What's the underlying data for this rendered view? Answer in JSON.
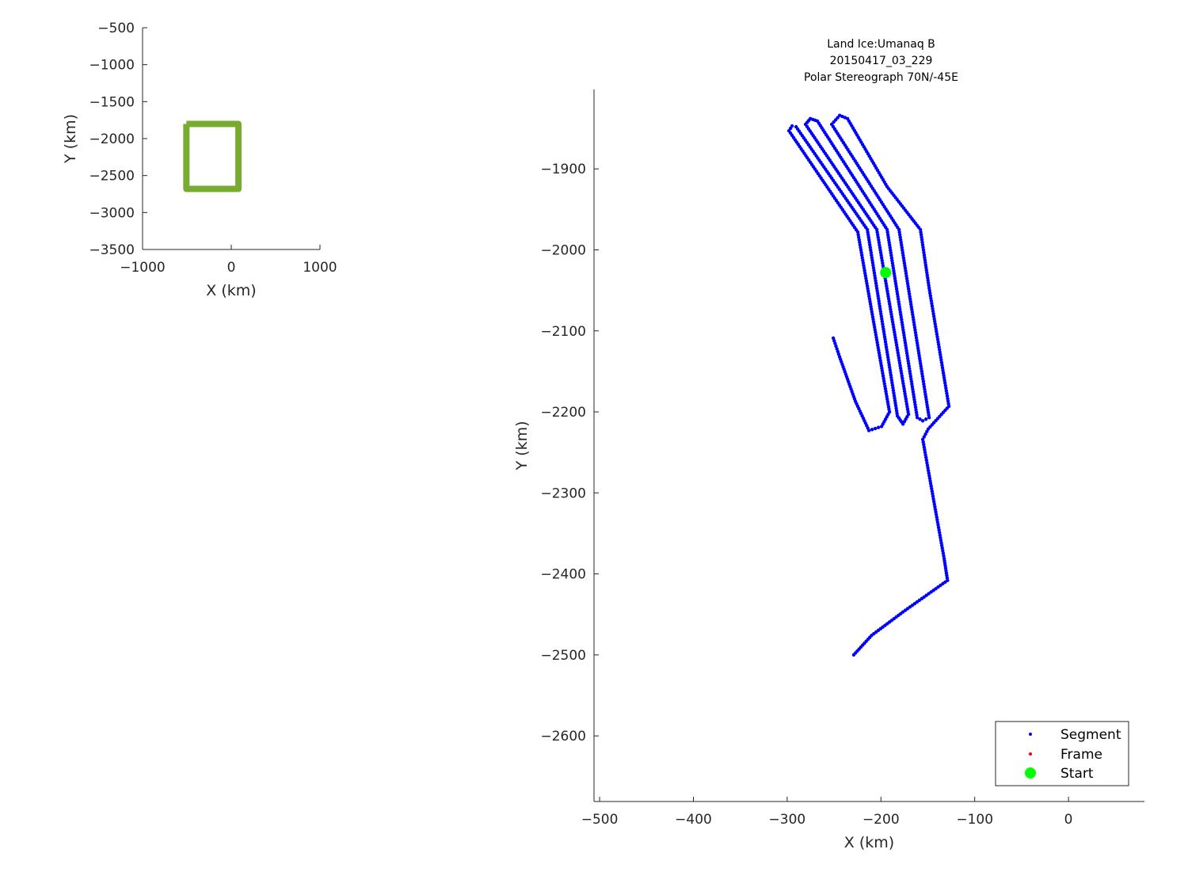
{
  "chart_data": [
    {
      "type": "line",
      "panel": "overview",
      "xlabel": "X (km)",
      "ylabel": "Y (km)",
      "xlim": [
        -1000,
        1000
      ],
      "ylim": [
        -3500,
        -500
      ],
      "xticks": [
        -1000,
        0,
        1000
      ],
      "yticks": [
        -3500,
        -3000,
        -2500,
        -2000,
        -1500,
        -1000,
        -500
      ],
      "grid": false,
      "series": [
        {
          "color": "#77AC30",
          "x": [
            -506,
            81,
            81,
            -506,
            -506
          ],
          "y": [
            -1802,
            -1802,
            -2681,
            -2681,
            -1802
          ]
        }
      ]
    },
    {
      "type": "scatter",
      "panel": "main",
      "title": [
        "Land Ice:Umanaq B",
        "20150417_03_229",
        "Polar Stereograph 70N/-45E"
      ],
      "xlabel": "X (km)",
      "ylabel": "Y (km)",
      "xlim": [
        -506,
        81
      ],
      "ylim": [
        -2681,
        -1802
      ],
      "xticks": [
        -500,
        -400,
        -300,
        -200,
        -100,
        0
      ],
      "yticks": [
        -2600,
        -2500,
        -2400,
        -2300,
        -2200,
        -2100,
        -2000,
        -1900
      ],
      "grid": false,
      "legend": {
        "placement": "bottom-right",
        "entries": [
          "Segment",
          "Frame",
          "Start"
        ]
      },
      "series": [
        {
          "name": "Segment",
          "color": "#0000FF",
          "x": [
            -229,
            -210,
            -176.5,
            -129,
            -132.6,
            -155.4,
            -149.5,
            -127.5,
            -148.6,
            -157.9,
            -193.4,
            -235.6,
            -244,
            -252.5,
            -180.7,
            -148.6,
            -155.4,
            -161.3,
            -193.4,
            -267.7,
            -275.3,
            -280.4,
            -204.4,
            -170.6,
            -176.5,
            -182.4,
            -214.5,
            -290.5,
            -294.8,
            -298.1,
            -224.7,
            -190.9,
            -199.3,
            -212.8,
            -227.2,
            -244.1,
            -250.8
          ],
          "y": [
            -2500,
            -2476,
            -2447,
            -2408,
            -2381,
            -2234,
            -2221,
            -2193,
            -2047,
            -1975,
            -1922,
            -1838,
            -1834,
            -1845,
            -1975,
            -2207,
            -2211,
            -2207,
            -1975,
            -1841,
            -1838,
            -1845,
            -1975,
            -2203,
            -2215,
            -2205,
            -1975,
            -1848,
            -1847,
            -1853,
            -1978,
            -2200,
            -2218,
            -2223,
            -2187,
            -2132,
            -2109
          ]
        },
        {
          "name": "Frame",
          "color": "#FF0000",
          "x": [],
          "y": []
        },
        {
          "name": "Start",
          "color": "#00FF00",
          "x": [
            -195
          ],
          "y": [
            -2028
          ]
        }
      ]
    }
  ]
}
